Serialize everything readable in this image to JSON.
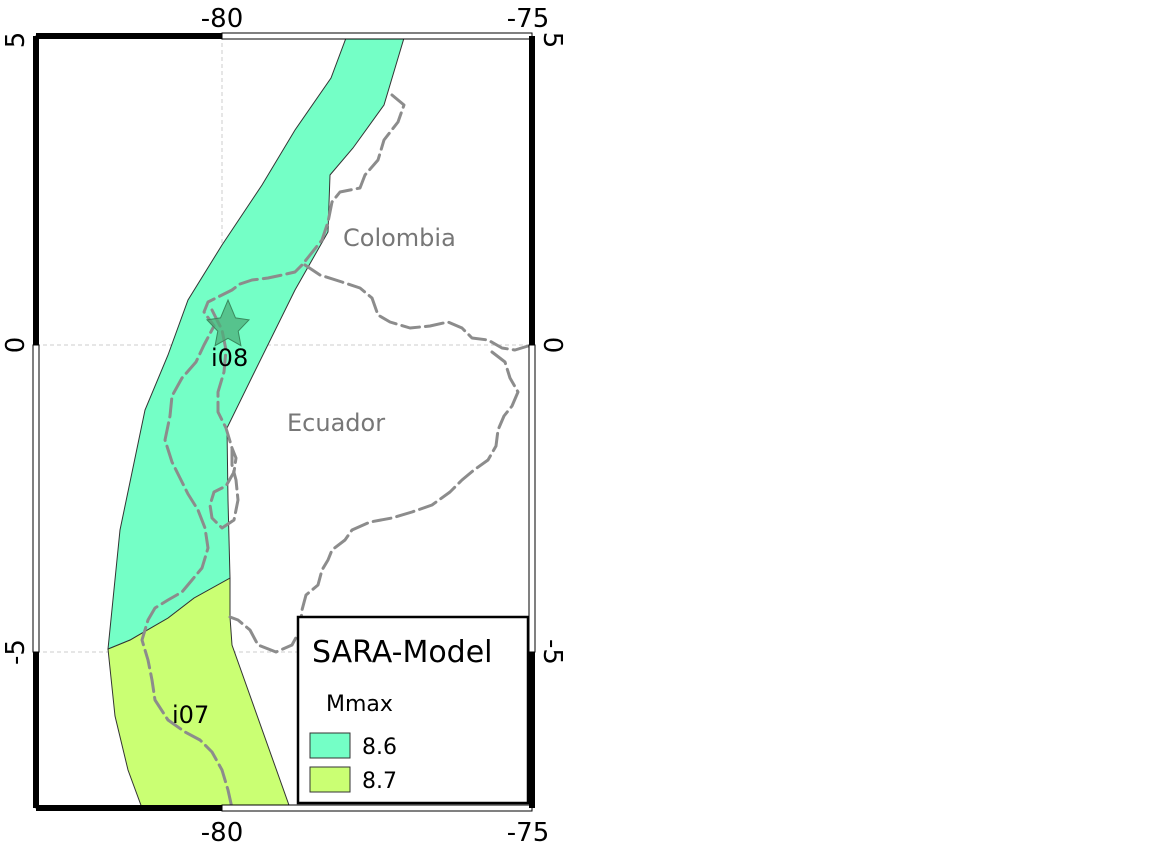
{
  "map": {
    "axis_ticks": {
      "top": [
        "-80",
        "-75"
      ],
      "bottom": [
        "-80",
        "-75"
      ],
      "left": [
        "5",
        "0",
        "-5"
      ],
      "right": [
        "5",
        "0",
        "-5"
      ]
    },
    "extent": {
      "lon": [
        -83,
        -75
      ],
      "lat": [
        -7.5,
        5
      ]
    },
    "gridlines": true,
    "country_labels": [
      "Colombia",
      "Ecuador"
    ],
    "zone_labels": [
      "i08",
      "i07"
    ],
    "epicenter_marker": "star-icon",
    "colors": {
      "zone_8_6": "#74ffc6",
      "zone_8_7": "#caff73",
      "coastline": "#8c8c8c",
      "star": "#4caf7a"
    }
  },
  "legend": {
    "title": "SARA-Model",
    "subtitle": "Mmax",
    "items": [
      {
        "label": "8.6",
        "color": "#74ffc6"
      },
      {
        "label": "8.7",
        "color": "#caff73"
      }
    ]
  }
}
